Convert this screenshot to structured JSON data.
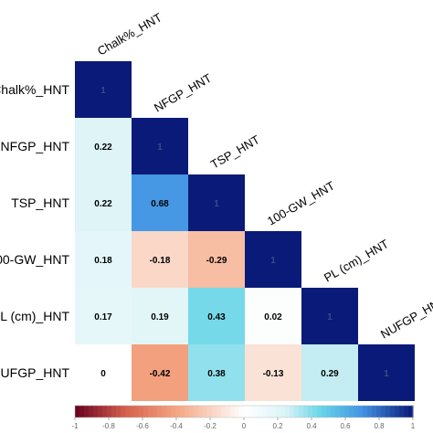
{
  "chart_data": {
    "type": "heatmap",
    "variables": [
      "Chalk%_HNT",
      "NFGP_HNT",
      "TSP_HNT",
      "100-GW_HNT",
      "PL (cm)_HNT",
      "NUFGP_HNT"
    ],
    "matrix": [
      [
        1,
        null,
        null,
        null,
        null,
        null
      ],
      [
        0.22,
        1,
        null,
        null,
        null,
        null
      ],
      [
        0.22,
        0.68,
        1,
        null,
        null,
        null
      ],
      [
        0.18,
        -0.18,
        -0.29,
        1,
        null,
        null
      ],
      [
        0.17,
        0.19,
        0.43,
        0.02,
        1,
        null
      ],
      [
        0,
        -0.42,
        0.38,
        -0.13,
        0.29,
        1
      ]
    ],
    "labels": [
      [
        "1",
        "",
        "",
        "",
        "",
        ""
      ],
      [
        "0.22",
        "1",
        "",
        "",
        "",
        ""
      ],
      [
        "0.22",
        "0.68",
        "1",
        "",
        "",
        ""
      ],
      [
        "0.18",
        "-0.18",
        "-0.29",
        "1",
        "",
        ""
      ],
      [
        "0.17",
        "0.19",
        "0.43",
        "0.02",
        "1",
        ""
      ],
      [
        "0",
        "-0.42",
        "0.38",
        "-0.13",
        "0.29",
        "1"
      ]
    ],
    "colorbar": {
      "range": [
        -1,
        1
      ],
      "ticks": [
        "-1",
        "-0.8",
        "-0.6",
        "-0.4",
        "-0.2",
        "0",
        "0.2",
        "0.4",
        "0.6",
        "0.8",
        "1"
      ],
      "colors": {
        "negative": "#67001f",
        "middle": "#ffffff",
        "low_positive": "#6ad6e8",
        "mid_positive": "#4393e4",
        "positive": "#0a1a78"
      }
    }
  }
}
